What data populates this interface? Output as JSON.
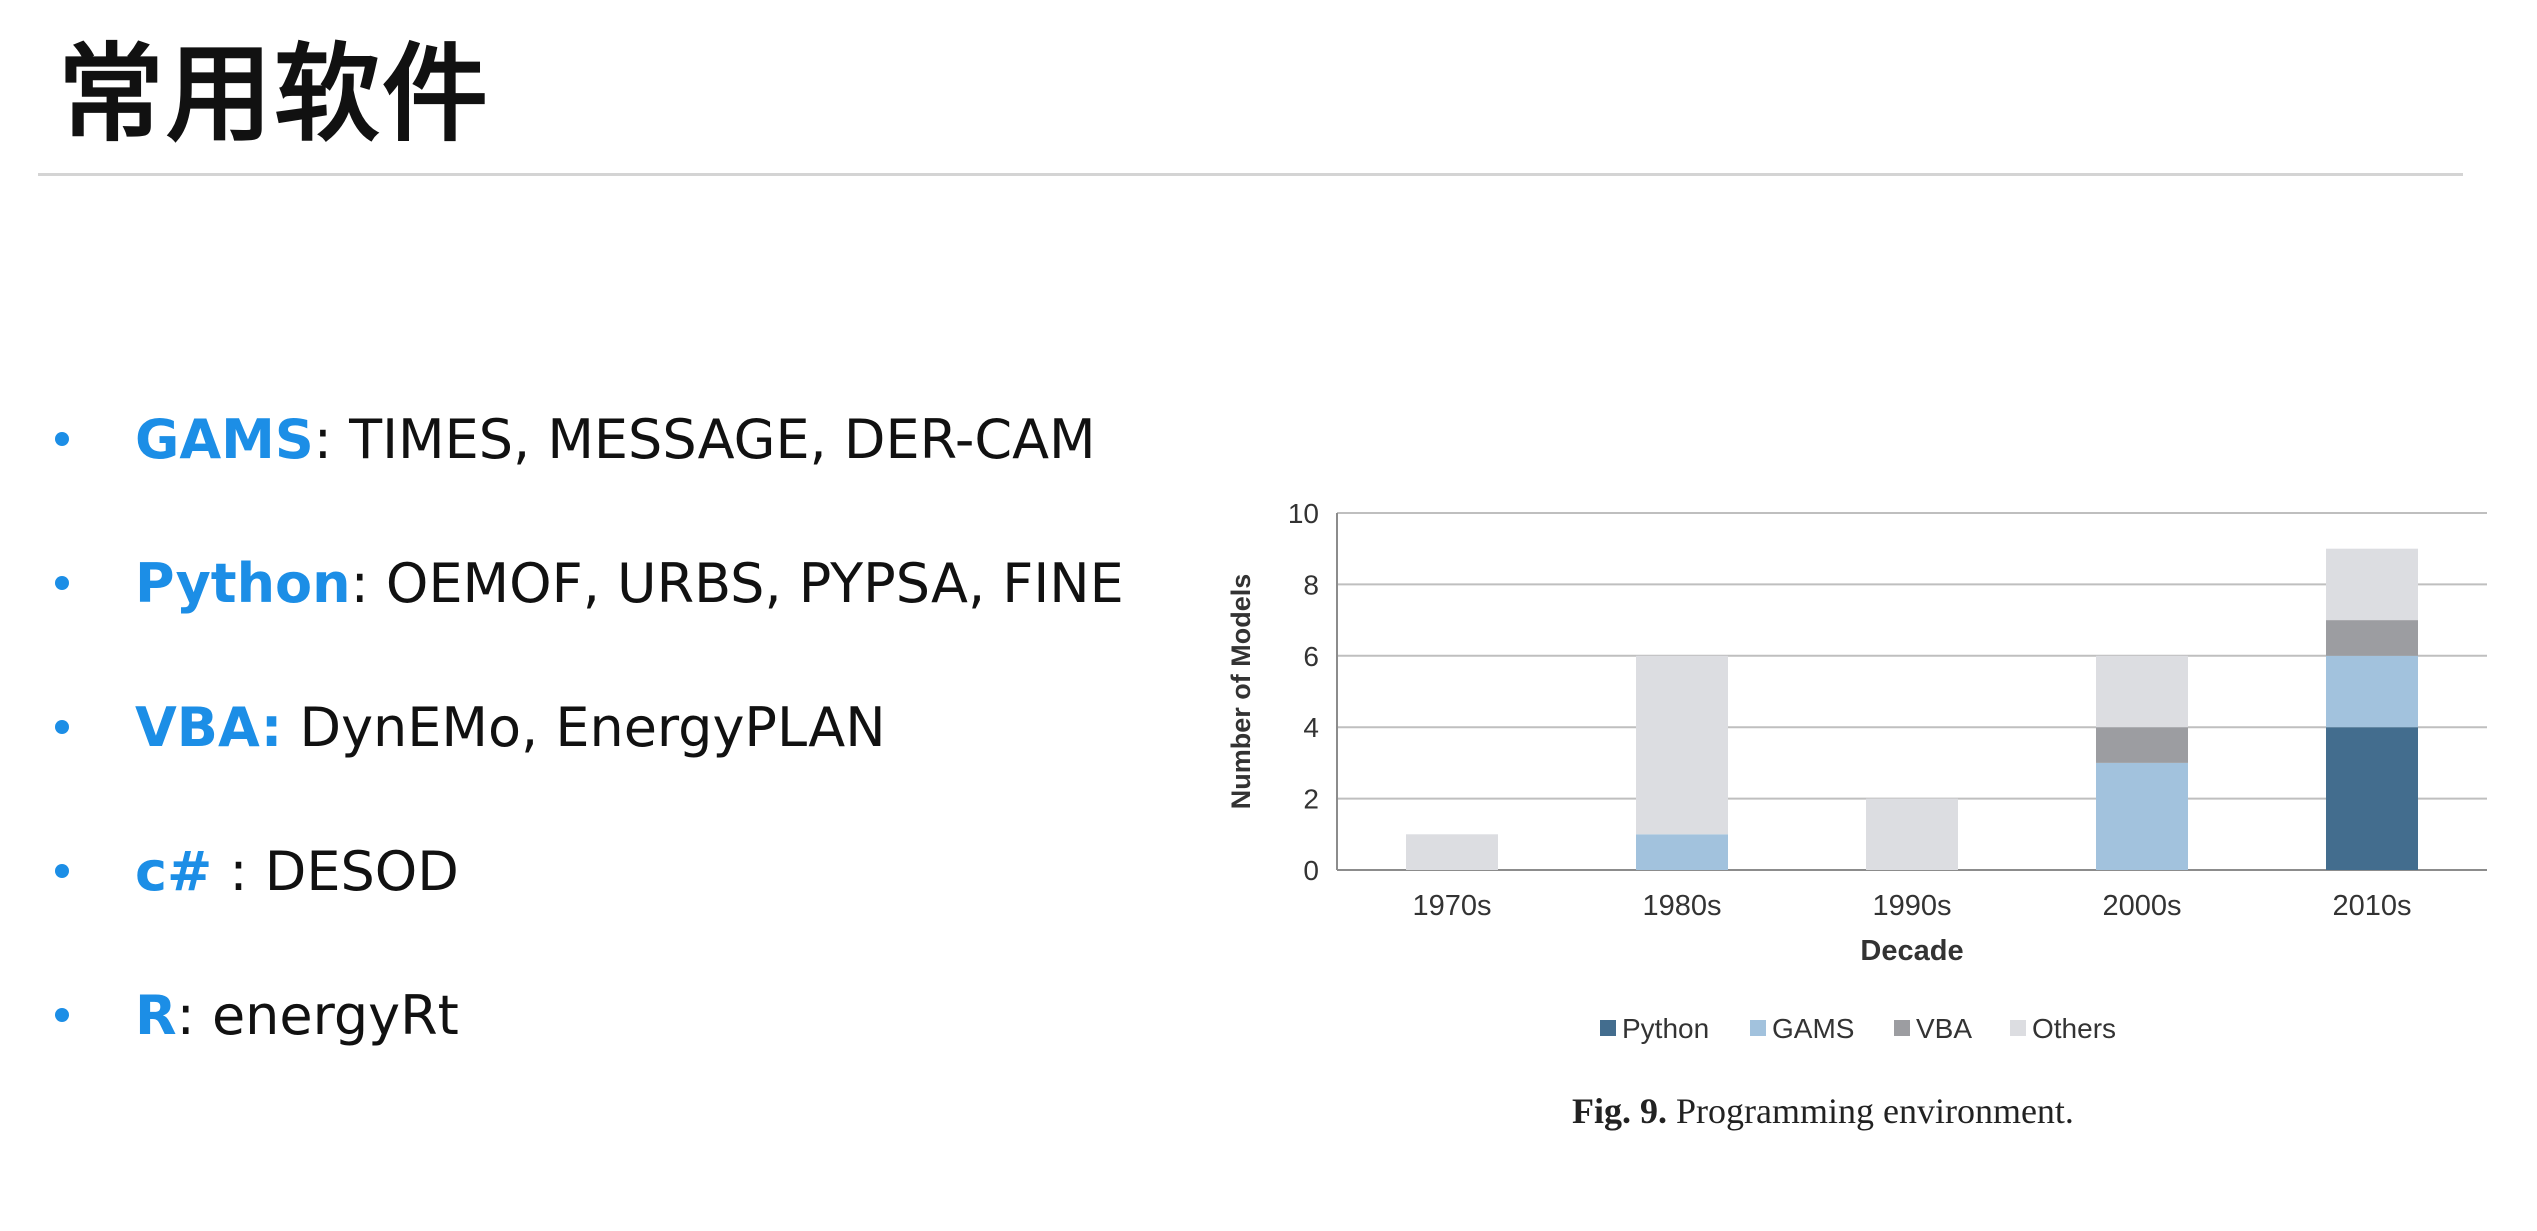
{
  "title": "常用软件",
  "bullets": [
    {
      "keyword": "GAMS",
      "rest": ": TIMES, MESSAGE, DER-CAM"
    },
    {
      "keyword": "Python",
      "rest": ": OEMOF, URBS, PYPSA, FINE"
    },
    {
      "keyword": "VBA:",
      "rest": " DynEMo, EnergyPLAN"
    },
    {
      "keyword": "c#",
      "rest": " : DESOD"
    },
    {
      "keyword": "R",
      "rest": ": energyRt"
    }
  ],
  "colors": {
    "accent": "#1c8ee6",
    "python": "#436d8e",
    "gams": "#a2c2dd",
    "vba": "#9c9da1",
    "others": "#dcdde1"
  },
  "chart_data": {
    "type": "bar",
    "stacked": true,
    "categories": [
      "1970s",
      "1980s",
      "1990s",
      "2000s",
      "2010s"
    ],
    "series": [
      {
        "name": "Python",
        "values": [
          0,
          0,
          0,
          0,
          4
        ]
      },
      {
        "name": "GAMS",
        "values": [
          0,
          1,
          0,
          3,
          2
        ]
      },
      {
        "name": "VBA",
        "values": [
          0,
          0,
          0,
          1,
          1
        ]
      },
      {
        "name": "Others",
        "values": [
          1,
          5,
          2,
          2,
          2
        ]
      }
    ],
    "xlabel": "Decade",
    "ylabel": "Number of Models",
    "ylim": [
      0,
      10
    ],
    "yticks": [
      "0",
      "2",
      "4",
      "6",
      "8",
      "10"
    ],
    "grid": true,
    "legend_position": "bottom"
  },
  "caption": {
    "label": "Fig. 9.",
    "text": " Programming environment."
  }
}
